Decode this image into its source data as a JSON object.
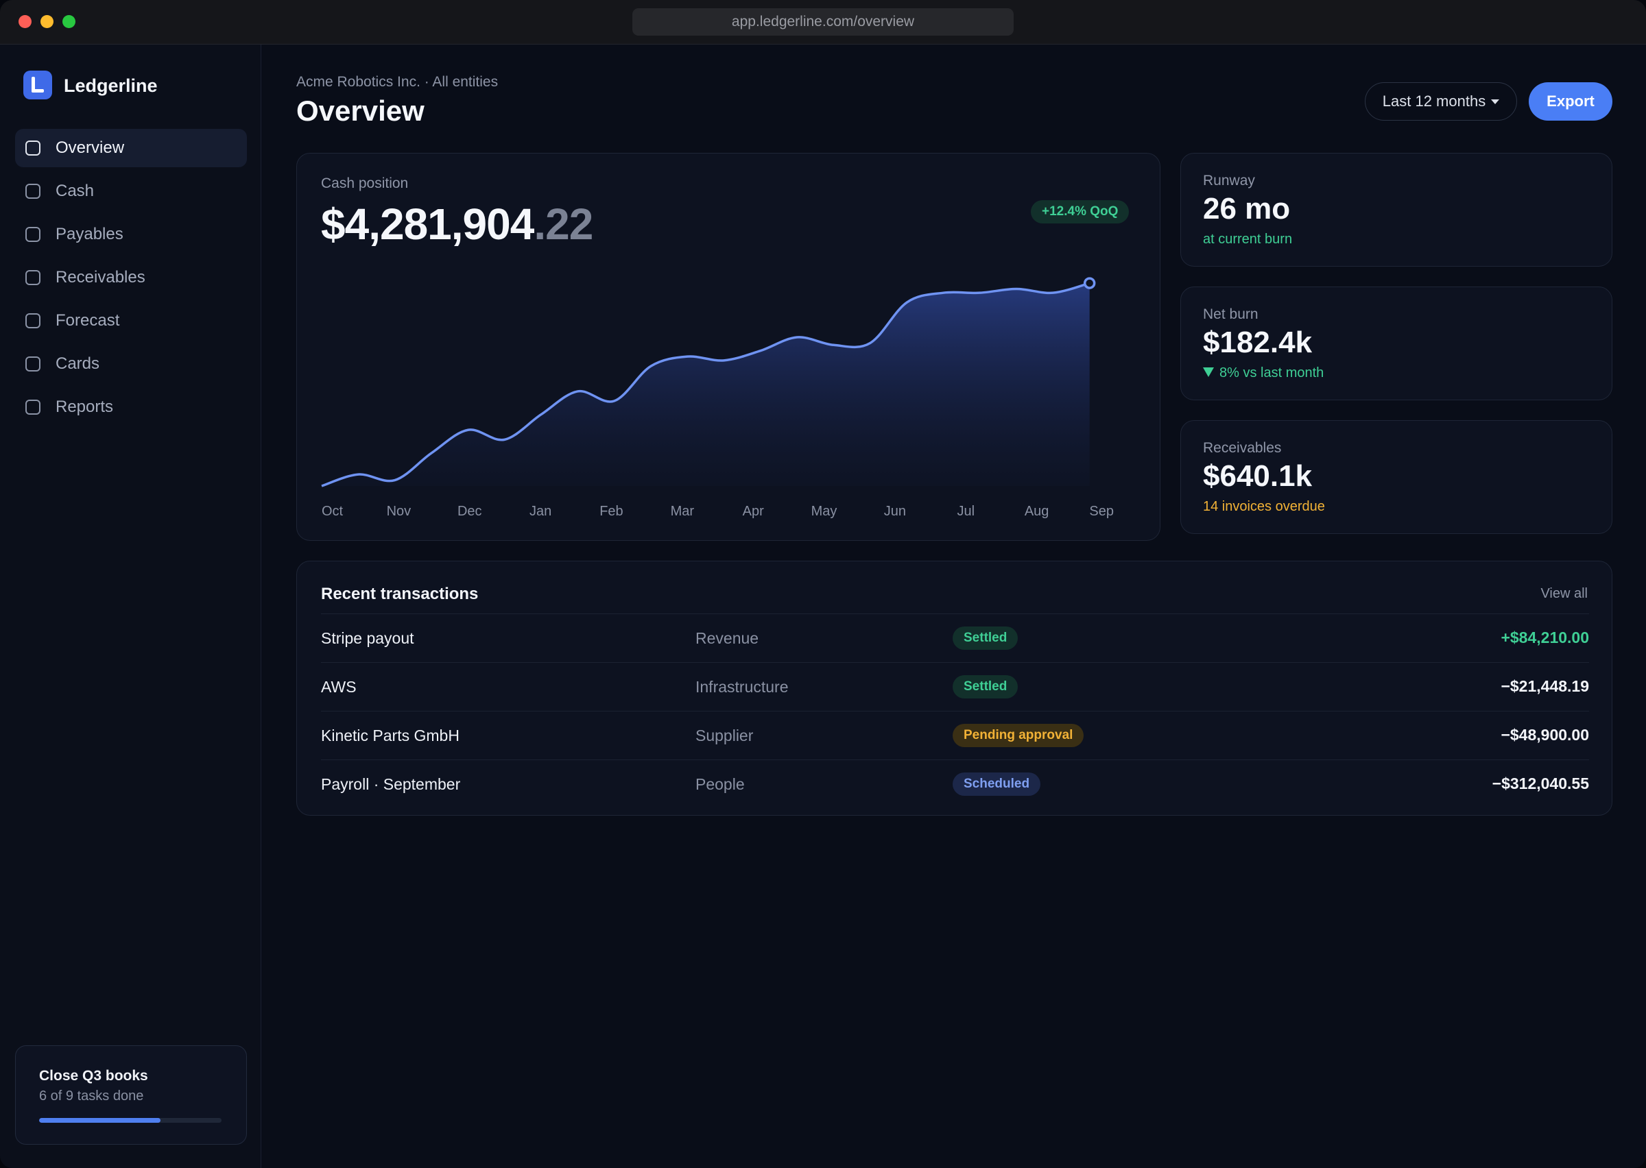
{
  "browser": {
    "url": "app.ledgerline.com/overview"
  },
  "sidebar": {
    "brand": "Ledgerline",
    "nav": [
      {
        "label": "Overview",
        "active": true
      },
      {
        "label": "Cash"
      },
      {
        "label": "Payables"
      },
      {
        "label": "Receivables"
      },
      {
        "label": "Forecast"
      },
      {
        "label": "Cards"
      },
      {
        "label": "Reports"
      }
    ],
    "task": {
      "title": "Close Q3 books",
      "subtitle": "6 of 9 tasks done",
      "progress": 0.667
    }
  },
  "header": {
    "breadcrumb": "Acme Robotics Inc. · All entities",
    "title": "Overview",
    "range_label": "Last 12 months",
    "export_label": "Export"
  },
  "cash": {
    "label": "Cash position",
    "value_main": "$4,281,904",
    "value_cents": ".22",
    "badge": "+12.4% QoQ"
  },
  "stats": [
    {
      "label": "Runway",
      "value": "26 mo",
      "note": "at current burn",
      "note_color": "#3fcf95"
    },
    {
      "label": "Net burn",
      "value": "$182.4k",
      "note": "8% vs last month",
      "note_color": "#3fcf95",
      "trend": "down"
    },
    {
      "label": "Receivables",
      "value": "$640.1k",
      "note": "14 invoices overdue",
      "note_color": "#f2b236"
    }
  ],
  "transactions": {
    "title": "Recent transactions",
    "view_all": "View all",
    "rows": [
      {
        "name": "Stripe payout",
        "category": "Revenue",
        "status": "Settled",
        "status_type": "settled",
        "amount": "+$84,210.00",
        "positive": true
      },
      {
        "name": "AWS",
        "category": "Infrastructure",
        "status": "Settled",
        "status_type": "settled",
        "amount": "−$21,448.19"
      },
      {
        "name": "Kinetic Parts GmbH",
        "category": "Supplier",
        "status": "Pending approval",
        "status_type": "pending",
        "amount": "−$48,900.00"
      },
      {
        "name": "Payroll · September",
        "category": "People",
        "status": "Scheduled",
        "status_type": "scheduled",
        "amount": "−$312,040.55"
      }
    ]
  },
  "colors": {
    "accent": "#4a7ef5",
    "positive": "#3fcf95",
    "warning": "#f2b236",
    "line": "#6f93f2"
  },
  "chart_data": {
    "type": "area",
    "categories": [
      "Oct",
      "Nov",
      "Dec",
      "Jan",
      "Feb",
      "Mar",
      "Apr",
      "May",
      "Jun",
      "Jul",
      "Aug",
      "Sep"
    ],
    "x": [
      0,
      0.5,
      1,
      1.5,
      2,
      2.5,
      3,
      3.5,
      4,
      4.5,
      5,
      5.5,
      6,
      6.5,
      7,
      7.5,
      8,
      8.5,
      9,
      9.5,
      10,
      10.5
    ],
    "values": [
      0.0,
      0.06,
      0.03,
      0.17,
      0.29,
      0.24,
      0.37,
      0.49,
      0.44,
      0.62,
      0.67,
      0.65,
      0.7,
      0.77,
      0.73,
      0.74,
      0.95,
      1.0,
      1.0,
      1.02,
      1.0,
      1.05
    ],
    "ylim": [
      0,
      1.1
    ],
    "grid": false,
    "end_marker": true
  }
}
